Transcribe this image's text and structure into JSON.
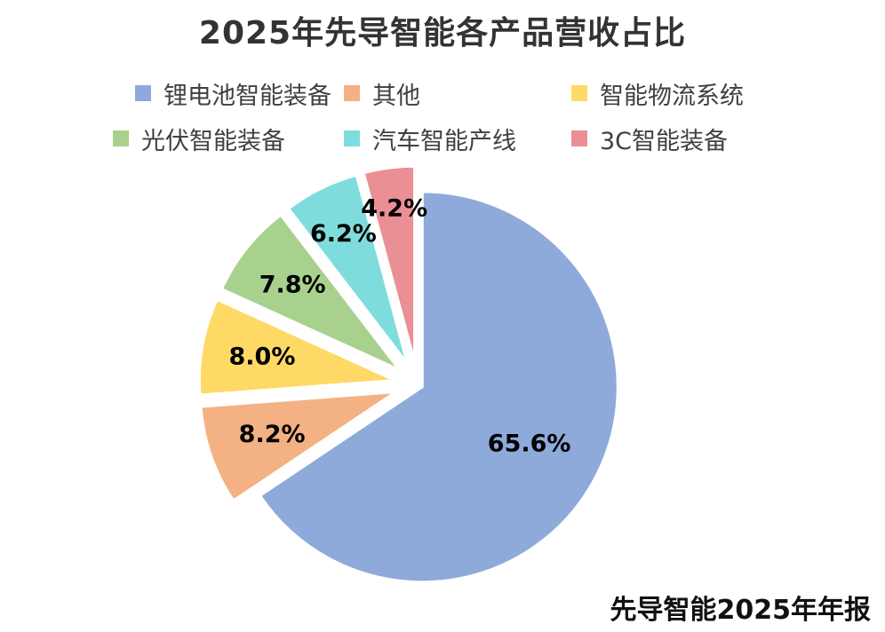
{
  "chart_data": {
    "type": "pie",
    "title": "2025年先导智能各产品营收占比",
    "source_label": "先导智能2025年年报",
    "legend": [
      {
        "label": "锂电池智能装备",
        "color": "#8eaadb"
      },
      {
        "label": "其他",
        "color": "#f4b183"
      },
      {
        "label": "智能物流系统",
        "color": "#ffd966"
      },
      {
        "label": "光伏智能装备",
        "color": "#a9d18e"
      },
      {
        "label": "汽车智能产线",
        "color": "#7fdcdc"
      },
      {
        "label": "3C智能装备",
        "color": "#ea8f94"
      }
    ],
    "slices": [
      {
        "label": "锂电池智能装备",
        "value": 65.6,
        "display": "65.6%",
        "color": "#8eaadb"
      },
      {
        "label": "其他",
        "value": 8.2,
        "display": "8.2%",
        "color": "#f4b183"
      },
      {
        "label": "智能物流系统",
        "value": 8.0,
        "display": "8.0%",
        "color": "#ffd966"
      },
      {
        "label": "光伏智能装备",
        "value": 7.8,
        "display": "7.8%",
        "color": "#a9d18e"
      },
      {
        "label": "汽车智能产线",
        "value": 6.2,
        "display": "6.2%",
        "color": "#7fdcdc"
      },
      {
        "label": "3C智能装备",
        "value": 4.2,
        "display": "4.2%",
        "color": "#ea8f94"
      }
    ]
  }
}
